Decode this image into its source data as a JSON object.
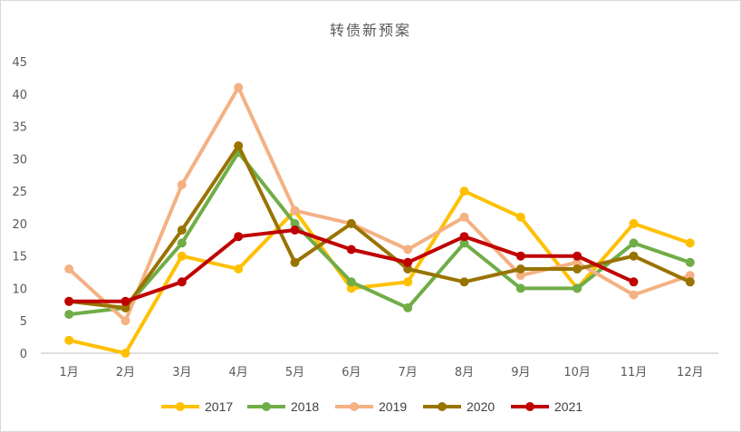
{
  "chart_data": {
    "type": "line",
    "title": "转债新预案",
    "xlabel": "",
    "ylabel": "",
    "categories": [
      "1月",
      "2月",
      "3月",
      "4月",
      "5月",
      "6月",
      "7月",
      "8月",
      "9月",
      "10月",
      "11月",
      "12月"
    ],
    "ylim": [
      0,
      45
    ],
    "yticks": [
      0,
      5,
      10,
      15,
      20,
      25,
      30,
      35,
      40,
      45
    ],
    "grid": false,
    "legend_position": "bottom",
    "series": [
      {
        "name": "2017",
        "color": "#FFC000",
        "values": [
          2,
          0,
          15,
          13,
          22,
          10,
          11,
          25,
          21,
          10,
          20,
          17
        ]
      },
      {
        "name": "2018",
        "color": "#70AD47",
        "values": [
          6,
          7,
          17,
          31,
          20,
          11,
          7,
          17,
          10,
          10,
          17,
          14
        ]
      },
      {
        "name": "2019",
        "color": "#F4B183",
        "values": [
          13,
          5,
          26,
          41,
          22,
          20,
          16,
          21,
          12,
          14,
          9,
          12
        ]
      },
      {
        "name": "2020",
        "color": "#997300",
        "values": [
          8,
          7,
          19,
          32,
          14,
          20,
          13,
          11,
          13,
          13,
          15,
          11
        ]
      },
      {
        "name": "2021",
        "color": "#C00000",
        "values": [
          8,
          8,
          11,
          18,
          19,
          16,
          14,
          18,
          15,
          15,
          11,
          null
        ]
      }
    ]
  }
}
